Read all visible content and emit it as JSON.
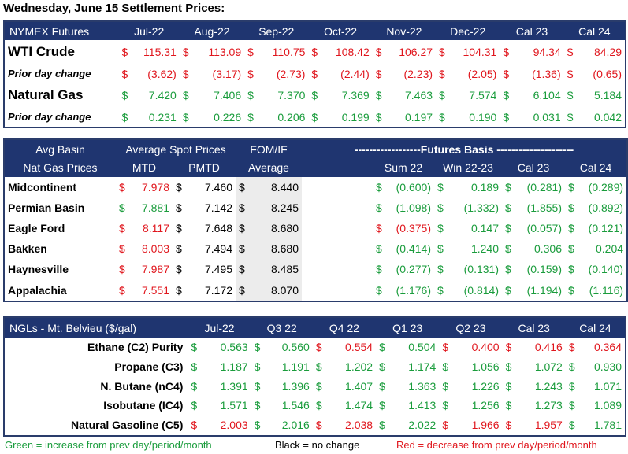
{
  "title": "Wednesday, June 15 Settlement Prices:",
  "nymex": {
    "header": [
      "NYMEX Futures",
      "Jul-22",
      "Aug-22",
      "Sep-22",
      "Oct-22",
      "Nov-22",
      "Dec-22",
      "Cal 23",
      "Cal 24"
    ],
    "rows": [
      {
        "label": "WTI Crude",
        "style": "big",
        "cells": [
          {
            "v": "115.31",
            "c": "r"
          },
          {
            "v": "113.09",
            "c": "r"
          },
          {
            "v": "110.75",
            "c": "r"
          },
          {
            "v": "108.42",
            "c": "r"
          },
          {
            "v": "106.27",
            "c": "r"
          },
          {
            "v": "104.31",
            "c": "r"
          },
          {
            "v": "94.34",
            "c": "r"
          },
          {
            "v": "84.29",
            "c": "r"
          }
        ]
      },
      {
        "label": "Prior day change",
        "style": "ital",
        "cells": [
          {
            "v": "(3.62)",
            "c": "r"
          },
          {
            "v": "(3.17)",
            "c": "r"
          },
          {
            "v": "(2.73)",
            "c": "r"
          },
          {
            "v": "(2.44)",
            "c": "r"
          },
          {
            "v": "(2.23)",
            "c": "r"
          },
          {
            "v": "(2.05)",
            "c": "r"
          },
          {
            "v": "(1.36)",
            "c": "r"
          },
          {
            "v": "(0.65)",
            "c": "r"
          }
        ]
      },
      {
        "label": "Natural Gas",
        "style": "big",
        "cells": [
          {
            "v": "7.420",
            "c": "g"
          },
          {
            "v": "7.406",
            "c": "g"
          },
          {
            "v": "7.370",
            "c": "g"
          },
          {
            "v": "7.369",
            "c": "g"
          },
          {
            "v": "7.463",
            "c": "g"
          },
          {
            "v": "7.574",
            "c": "g"
          },
          {
            "v": "6.104",
            "c": "g"
          },
          {
            "v": "5.184",
            "c": "g"
          }
        ]
      },
      {
        "label": "Prior day change",
        "style": "ital",
        "cells": [
          {
            "v": "0.231",
            "c": "g"
          },
          {
            "v": "0.226",
            "c": "g"
          },
          {
            "v": "0.206",
            "c": "g"
          },
          {
            "v": "0.199",
            "c": "g"
          },
          {
            "v": "0.197",
            "c": "g"
          },
          {
            "v": "0.190",
            "c": "g"
          },
          {
            "v": "0.031",
            "c": "g"
          },
          {
            "v": "0.042",
            "c": "g"
          }
        ]
      }
    ]
  },
  "basin": {
    "header1": [
      "Avg Basin",
      "Average Spot Prices",
      "FOM/IF",
      "------------------Futures Basis ---------------------"
    ],
    "header2": [
      "Nat Gas Prices",
      "MTD",
      "PMTD",
      "Average",
      "Sum 22",
      "Win 22-23",
      "Cal 23",
      "Cal 24"
    ],
    "rows": [
      {
        "label": "Midcontinent",
        "mtd": {
          "v": "7.978",
          "c": "r"
        },
        "pmtd": "7.460",
        "fom": "8.440",
        "basis": [
          {
            "v": "(0.600)",
            "c": "g"
          },
          {
            "v": "0.189",
            "c": "g"
          },
          {
            "v": "(0.281)",
            "c": "g"
          },
          {
            "v": "(0.289)",
            "c": "g"
          }
        ]
      },
      {
        "label": "Permian Basin",
        "mtd": {
          "v": "7.881",
          "c": "g"
        },
        "pmtd": "7.142",
        "fom": "8.245",
        "basis": [
          {
            "v": "(1.098)",
            "c": "g"
          },
          {
            "v": "(1.332)",
            "c": "g"
          },
          {
            "v": "(1.855)",
            "c": "g"
          },
          {
            "v": "(0.892)",
            "c": "g"
          }
        ]
      },
      {
        "label": "Eagle Ford",
        "mtd": {
          "v": "8.117",
          "c": "r"
        },
        "pmtd": "7.648",
        "fom": "8.680",
        "basis": [
          {
            "v": "(0.375)",
            "c": "r"
          },
          {
            "v": "0.147",
            "c": "g"
          },
          {
            "v": "(0.057)",
            "c": "g"
          },
          {
            "v": "(0.121)",
            "c": "g"
          }
        ]
      },
      {
        "label": "Bakken",
        "mtd": {
          "v": "8.003",
          "c": "r"
        },
        "pmtd": "7.494",
        "fom": "8.680",
        "basis": [
          {
            "v": "(0.414)",
            "c": "g"
          },
          {
            "v": "1.240",
            "c": "g"
          },
          {
            "v": "0.306",
            "c": "g"
          },
          {
            "v": "0.204",
            "c": "g"
          }
        ]
      },
      {
        "label": "Haynesville",
        "mtd": {
          "v": "7.987",
          "c": "r"
        },
        "pmtd": "7.495",
        "fom": "8.485",
        "basis": [
          {
            "v": "(0.277)",
            "c": "g"
          },
          {
            "v": "(0.131)",
            "c": "g"
          },
          {
            "v": "(0.159)",
            "c": "g"
          },
          {
            "v": "(0.140)",
            "c": "g"
          }
        ]
      },
      {
        "label": "Appalachia",
        "mtd": {
          "v": "7.551",
          "c": "r"
        },
        "pmtd": "7.172",
        "fom": "8.070",
        "basis": [
          {
            "v": "(1.176)",
            "c": "g"
          },
          {
            "v": "(0.814)",
            "c": "g"
          },
          {
            "v": "(1.194)",
            "c": "g"
          },
          {
            "v": "(1.116)",
            "c": "g"
          }
        ]
      }
    ]
  },
  "ngl": {
    "header": [
      "NGLs - Mt. Belvieu ($/gal)",
      "Jul-22",
      "Q3 22",
      "Q4 22",
      "Q1 23",
      "Q2 23",
      "Cal 23",
      "Cal 24"
    ],
    "rows": [
      {
        "label": "Ethane (C2) Purity",
        "cells": [
          {
            "v": "0.563",
            "c": "g"
          },
          {
            "v": "0.560",
            "c": "g"
          },
          {
            "v": "0.554",
            "c": "r"
          },
          {
            "v": "0.504",
            "c": "g"
          },
          {
            "v": "0.400",
            "c": "r"
          },
          {
            "v": "0.416",
            "c": "r"
          },
          {
            "v": "0.364",
            "c": "r"
          }
        ]
      },
      {
        "label": "Propane (C3)",
        "cells": [
          {
            "v": "1.187",
            "c": "g"
          },
          {
            "v": "1.191",
            "c": "g"
          },
          {
            "v": "1.202",
            "c": "g"
          },
          {
            "v": "1.174",
            "c": "g"
          },
          {
            "v": "1.056",
            "c": "g"
          },
          {
            "v": "1.072",
            "c": "g"
          },
          {
            "v": "0.930",
            "c": "g"
          }
        ]
      },
      {
        "label": "N. Butane (nC4)",
        "cells": [
          {
            "v": "1.391",
            "c": "g"
          },
          {
            "v": "1.396",
            "c": "g"
          },
          {
            "v": "1.407",
            "c": "g"
          },
          {
            "v": "1.363",
            "c": "g"
          },
          {
            "v": "1.226",
            "c": "g"
          },
          {
            "v": "1.243",
            "c": "g"
          },
          {
            "v": "1.071",
            "c": "g"
          }
        ]
      },
      {
        "label": "Isobutane (IC4)",
        "cells": [
          {
            "v": "1.571",
            "c": "g"
          },
          {
            "v": "1.546",
            "c": "g"
          },
          {
            "v": "1.474",
            "c": "g"
          },
          {
            "v": "1.413",
            "c": "g"
          },
          {
            "v": "1.256",
            "c": "g"
          },
          {
            "v": "1.273",
            "c": "g"
          },
          {
            "v": "1.089",
            "c": "g"
          }
        ]
      },
      {
        "label": "Natural Gasoline (C5)",
        "cells": [
          {
            "v": "2.003",
            "c": "r"
          },
          {
            "v": "2.016",
            "c": "g"
          },
          {
            "v": "2.038",
            "c": "r"
          },
          {
            "v": "2.022",
            "c": "g"
          },
          {
            "v": "1.966",
            "c": "r"
          },
          {
            "v": "1.957",
            "c": "r"
          },
          {
            "v": "1.781",
            "c": "g"
          }
        ]
      }
    ]
  },
  "currency_symbol": "$",
  "legend": {
    "green": "Green = increase from prev day/period/month",
    "black": "Black = no change",
    "red": "Red = decrease from prev day/period/month"
  },
  "colors": {
    "header_bg": "#1f3570",
    "green": "#1a9c3c",
    "red": "#e0161d",
    "shade": "#ececec"
  }
}
